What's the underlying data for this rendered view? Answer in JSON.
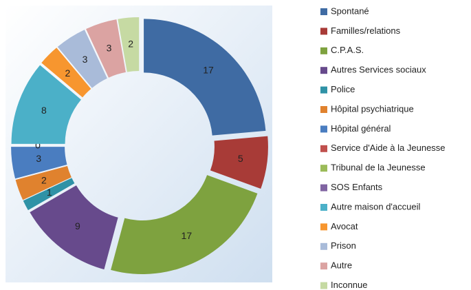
{
  "chart_data": {
    "type": "donut",
    "categories": [
      "Spontané",
      "Familles/relations",
      "C.P.A.S.",
      "Autres Services sociaux",
      "Police",
      "Hôpital psychiatrique",
      "Hôpital général",
      "Service d'Aide à la Jeunesse",
      "Tribunal de la Jeunesse",
      "SOS Enfants",
      "Autre maison d'accueil",
      "Avocat",
      "Prison",
      "Autre",
      "Inconnue"
    ],
    "values": [
      17,
      5,
      17,
      9,
      1,
      2,
      3,
      0,
      null,
      null,
      8,
      2,
      3,
      3,
      2
    ],
    "colors": [
      "#3f6ba3",
      "#a83b37",
      "#7ea23f",
      "#674a8c",
      "#2f92a6",
      "#e0822e",
      "#4a7dc0",
      "#c0504d",
      "#9bbb59",
      "#8064a2",
      "#4bb0c8",
      "#f7962f",
      "#a9bbd9",
      "#dba3a2",
      "#c6daa3"
    ],
    "legend": "right"
  }
}
